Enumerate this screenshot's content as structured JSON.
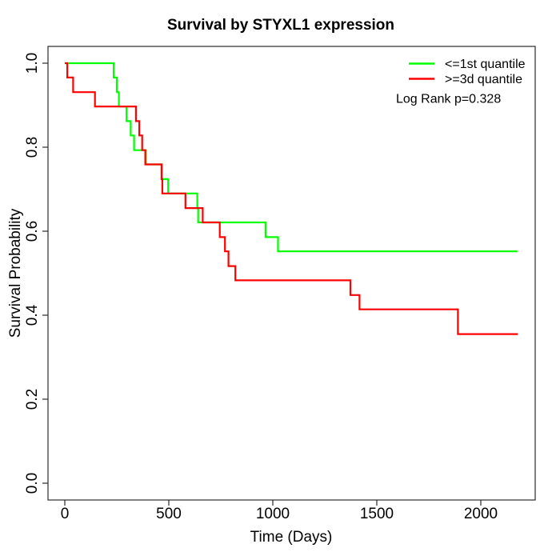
{
  "title": "Survival by STYXL1 expression",
  "chart_data": {
    "type": "line",
    "subtype": "kaplan-meier-step",
    "title": "Survival by STYXL1 expression",
    "xlabel": "Time (Days)",
    "ylabel": "Survival Probability",
    "xlim": [
      0,
      2260
    ],
    "ylim": [
      0.0,
      1.0
    ],
    "grid": false,
    "legend_position": "top-right",
    "annotation": "Log Rank p=0.328",
    "xticks": {
      "values": [
        0,
        500,
        1000,
        1500,
        2000
      ],
      "labels": [
        "0",
        "500",
        "1000",
        "1500",
        "2000"
      ]
    },
    "yticks": {
      "values": [
        0.0,
        0.2,
        0.4,
        0.6,
        0.8,
        1.0
      ],
      "labels": [
        "0.0",
        "0.2",
        "0.4",
        "0.6",
        "0.8",
        "1.0"
      ]
    },
    "series": [
      {
        "name": "<=1st quantile",
        "color": "#00FF00",
        "steps": [
          [
            0,
            1.0
          ],
          [
            235,
            0.966
          ],
          [
            250,
            0.931
          ],
          [
            260,
            0.897
          ],
          [
            297,
            0.862
          ],
          [
            317,
            0.828
          ],
          [
            333,
            0.793
          ],
          [
            390,
            0.759
          ],
          [
            467,
            0.724
          ],
          [
            497,
            0.69
          ],
          [
            637,
            0.655
          ],
          [
            641,
            0.621
          ],
          [
            965,
            0.586
          ],
          [
            1025,
            0.552
          ],
          [
            2176,
            0.552
          ]
        ]
      },
      {
        "name": ">=3d quantile",
        "color": "#FF0000",
        "steps": [
          [
            0,
            1.0
          ],
          [
            12,
            0.966
          ],
          [
            40,
            0.931
          ],
          [
            145,
            0.897
          ],
          [
            342,
            0.862
          ],
          [
            358,
            0.828
          ],
          [
            372,
            0.793
          ],
          [
            387,
            0.759
          ],
          [
            465,
            0.724
          ],
          [
            469,
            0.69
          ],
          [
            580,
            0.655
          ],
          [
            663,
            0.621
          ],
          [
            745,
            0.586
          ],
          [
            770,
            0.552
          ],
          [
            787,
            0.517
          ],
          [
            820,
            0.483
          ],
          [
            1373,
            0.448
          ],
          [
            1417,
            0.414
          ],
          [
            1890,
            0.355
          ],
          [
            2178,
            0.355
          ]
        ]
      }
    ]
  }
}
